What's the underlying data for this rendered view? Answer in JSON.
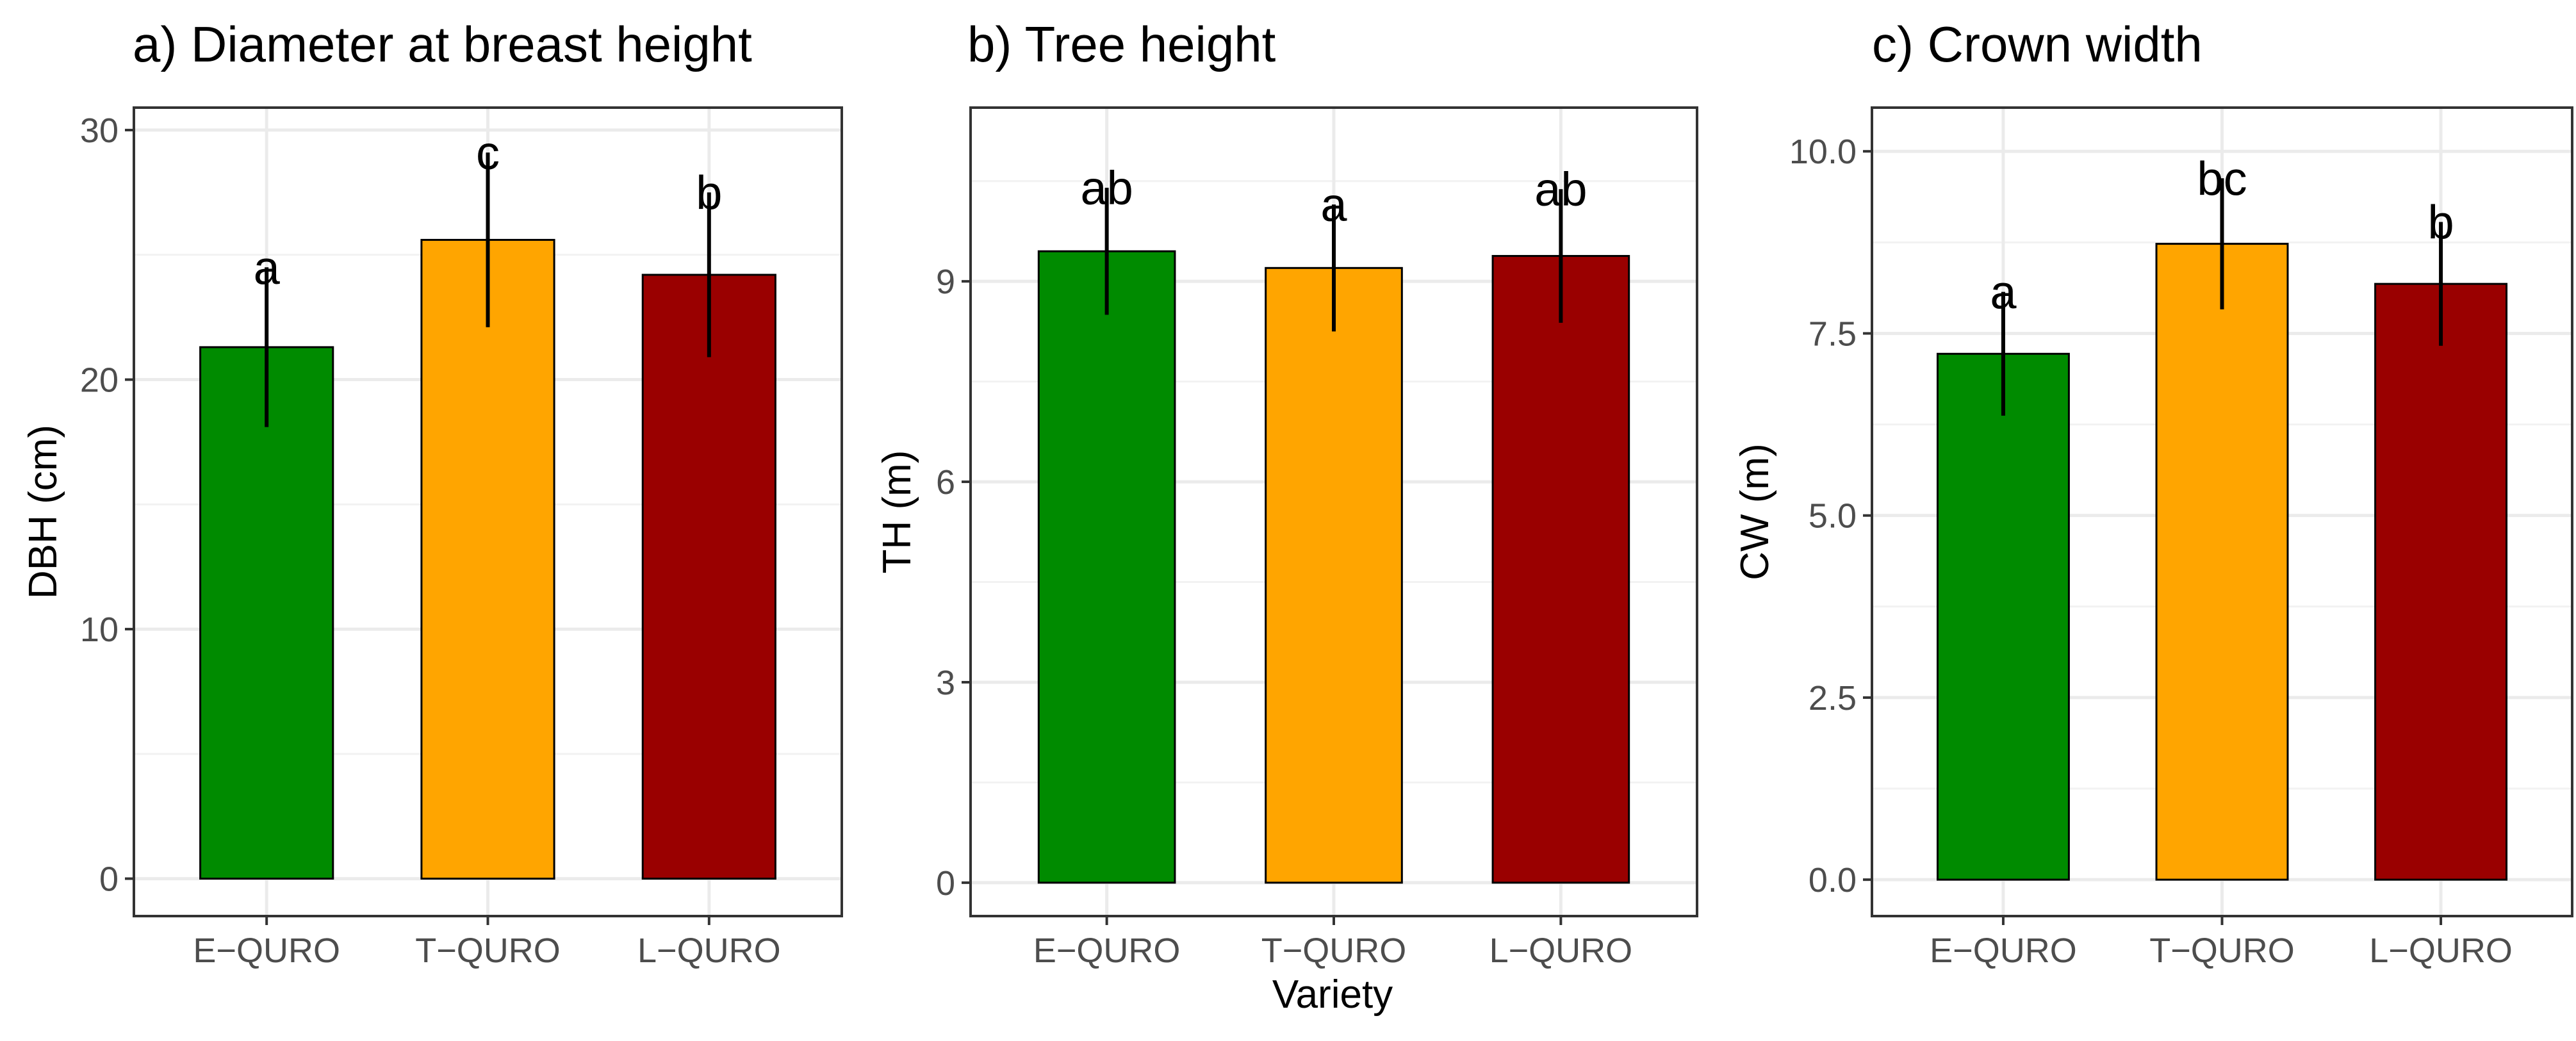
{
  "figure": {
    "shared_xlabel": "Variety"
  },
  "chart_data": [
    {
      "type": "bar",
      "title": "a) Diameter at breast height",
      "xlabel": "",
      "ylabel": "DBH (cm)",
      "categories": [
        "E−QURO",
        "T−QURO",
        "L−QURO"
      ],
      "values": [
        21.3,
        25.6,
        24.2
      ],
      "errors": [
        3.2,
        3.5,
        3.3
      ],
      "letters": [
        "a",
        "c",
        "b"
      ],
      "colors": [
        "#008b00",
        "#ffa500",
        "#9a0000"
      ],
      "ylim": [
        -1.5,
        30.9
      ],
      "yticks": [
        0,
        10,
        20,
        30
      ],
      "ytick_labels": [
        "0",
        "10",
        "20",
        "30"
      ],
      "grid": true
    },
    {
      "type": "bar",
      "title": "b) Tree height",
      "xlabel": "Variety",
      "ylabel": "TH (m)",
      "categories": [
        "E−QURO",
        "T−QURO",
        "L−QURO"
      ],
      "values": [
        9.45,
        9.2,
        9.38
      ],
      "errors": [
        0.95,
        0.95,
        1.0
      ],
      "letters": [
        "ab",
        "a",
        "ab"
      ],
      "colors": [
        "#008b00",
        "#ffa500",
        "#9a0000"
      ],
      "ylim": [
        -0.5,
        11.6
      ],
      "yticks": [
        0,
        3,
        6,
        9
      ],
      "ytick_labels": [
        "0",
        "3",
        "6",
        "9"
      ],
      "grid": true
    },
    {
      "type": "bar",
      "title": "c) Crown width",
      "xlabel": "",
      "ylabel": "CW (m)",
      "categories": [
        "E−QURO",
        "T−QURO",
        "L−QURO"
      ],
      "values": [
        7.22,
        8.73,
        8.18
      ],
      "errors": [
        0.85,
        0.9,
        0.85
      ],
      "letters": [
        "a",
        "bc",
        "b"
      ],
      "colors": [
        "#008b00",
        "#ffa500",
        "#9a0000"
      ],
      "ylim": [
        -0.5,
        10.6
      ],
      "yticks": [
        0,
        2.5,
        5,
        7.5,
        10
      ],
      "ytick_labels": [
        "0.0",
        "2.5",
        "5.0",
        "7.5",
        "10.0"
      ],
      "grid": true
    }
  ]
}
